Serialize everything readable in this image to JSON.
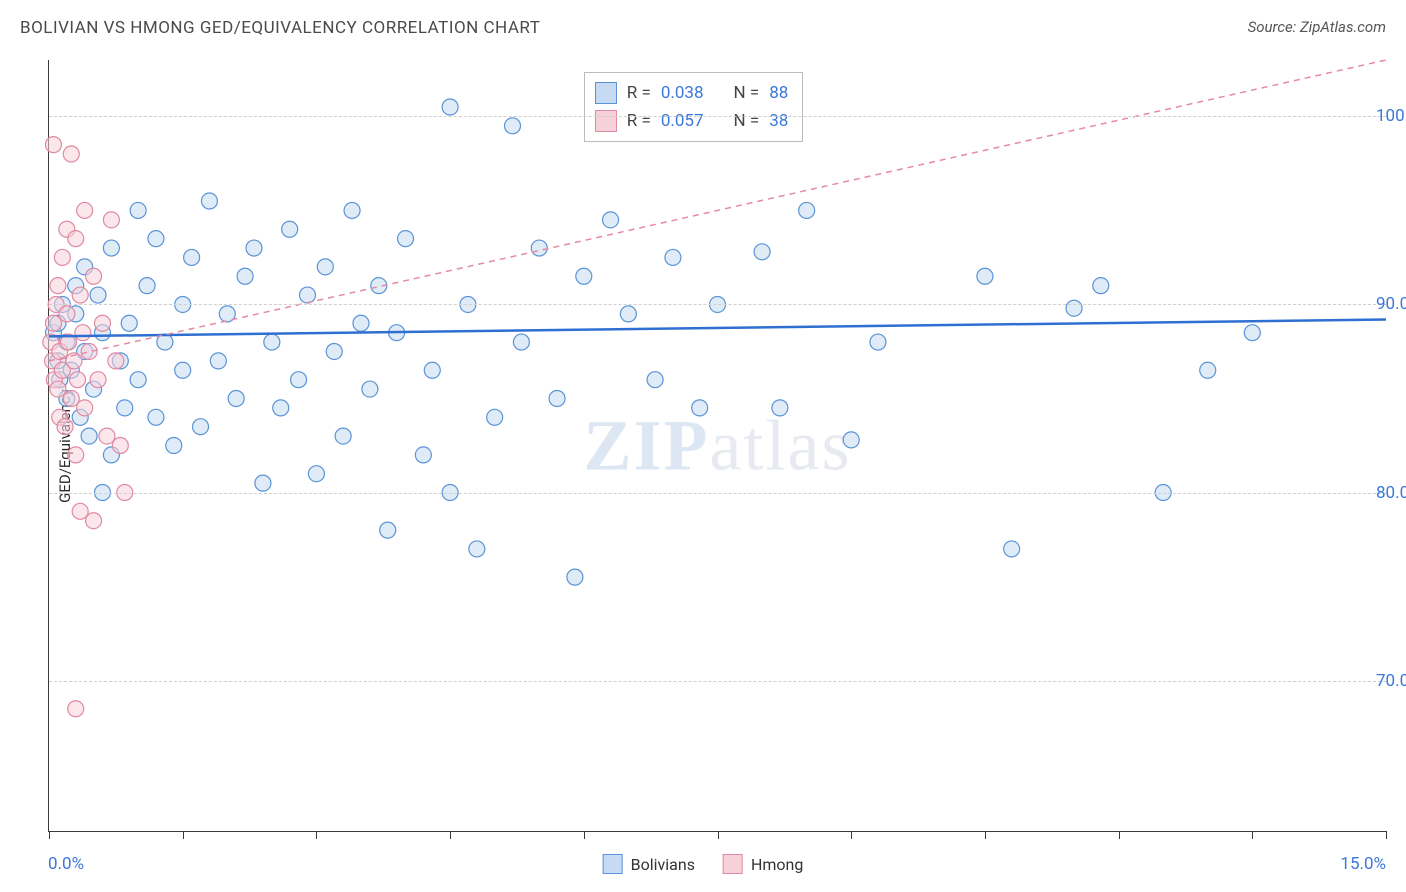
{
  "title": "BOLIVIAN VS HMONG GED/EQUIVALENCY CORRELATION CHART",
  "source_label": "Source: ZipAtlas.com",
  "watermark_main": "ZIP",
  "watermark_sub": "atlas",
  "chart": {
    "type": "scatter",
    "background_color": "#ffffff",
    "grid_color": "#cfcfcf",
    "border_color": "#3a3a3a",
    "xlim": [
      0,
      15
    ],
    "ylim": [
      62,
      103
    ],
    "x_ticks": [
      0,
      1.5,
      3.0,
      4.5,
      6.0,
      7.5,
      9.0,
      10.5,
      12.0,
      13.5,
      15.0
    ],
    "x_tick_labels": {
      "0": "0.0%",
      "15": "15.0%"
    },
    "y_ticks": [
      70,
      80,
      90,
      100
    ],
    "y_tick_labels": {
      "70": "70.0%",
      "80": "80.0%",
      "90": "90.0%",
      "100": "100.0%"
    },
    "ylabel": "GED/Equivalency",
    "axis_label_color": "#3b78d8",
    "marker_radius": 8,
    "marker_stroke_width": 1.2,
    "marker_opacity": 0.55,
    "series": [
      {
        "name": "Bolivians",
        "fill": "#c6dbf3",
        "stroke": "#5a94d6",
        "R": "0.038",
        "N": "88",
        "trend": {
          "x1": 0,
          "y1": 88.3,
          "x2": 15,
          "y2": 89.2,
          "color": "#2f6fd1",
          "width": 2.5,
          "dash": "none"
        },
        "points": [
          [
            0.05,
            88.5
          ],
          [
            0.1,
            87.0
          ],
          [
            0.1,
            89.0
          ],
          [
            0.12,
            86.0
          ],
          [
            0.15,
            90.0
          ],
          [
            0.2,
            85.0
          ],
          [
            0.2,
            88.0
          ],
          [
            0.25,
            86.5
          ],
          [
            0.3,
            89.5
          ],
          [
            0.3,
            91.0
          ],
          [
            0.35,
            84.0
          ],
          [
            0.4,
            92.0
          ],
          [
            0.4,
            87.5
          ],
          [
            0.45,
            83.0
          ],
          [
            0.5,
            85.5
          ],
          [
            0.55,
            90.5
          ],
          [
            0.6,
            80.0
          ],
          [
            0.6,
            88.5
          ],
          [
            0.7,
            82.0
          ],
          [
            0.7,
            93.0
          ],
          [
            0.8,
            87.0
          ],
          [
            0.85,
            84.5
          ],
          [
            0.9,
            89.0
          ],
          [
            1.0,
            95.0
          ],
          [
            1.0,
            86.0
          ],
          [
            1.1,
            91.0
          ],
          [
            1.2,
            93.5
          ],
          [
            1.2,
            84.0
          ],
          [
            1.3,
            88.0
          ],
          [
            1.4,
            82.5
          ],
          [
            1.5,
            90.0
          ],
          [
            1.5,
            86.5
          ],
          [
            1.6,
            92.5
          ],
          [
            1.7,
            83.5
          ],
          [
            1.8,
            95.5
          ],
          [
            1.9,
            87.0
          ],
          [
            2.0,
            89.5
          ],
          [
            2.1,
            85.0
          ],
          [
            2.2,
            91.5
          ],
          [
            2.3,
            93.0
          ],
          [
            2.4,
            80.5
          ],
          [
            2.5,
            88.0
          ],
          [
            2.6,
            84.5
          ],
          [
            2.7,
            94.0
          ],
          [
            2.8,
            86.0
          ],
          [
            2.9,
            90.5
          ],
          [
            3.0,
            81.0
          ],
          [
            3.1,
            92.0
          ],
          [
            3.2,
            87.5
          ],
          [
            3.3,
            83.0
          ],
          [
            3.4,
            95.0
          ],
          [
            3.5,
            89.0
          ],
          [
            3.6,
            85.5
          ],
          [
            3.7,
            91.0
          ],
          [
            3.8,
            78.0
          ],
          [
            3.9,
            88.5
          ],
          [
            4.0,
            93.5
          ],
          [
            4.2,
            82.0
          ],
          [
            4.3,
            86.5
          ],
          [
            4.5,
            100.5
          ],
          [
            4.5,
            80.0
          ],
          [
            4.7,
            90.0
          ],
          [
            4.8,
            77.0
          ],
          [
            5.0,
            84.0
          ],
          [
            5.2,
            99.5
          ],
          [
            5.3,
            88.0
          ],
          [
            5.5,
            93.0
          ],
          [
            5.7,
            85.0
          ],
          [
            5.9,
            75.5
          ],
          [
            6.0,
            91.5
          ],
          [
            6.3,
            94.5
          ],
          [
            6.5,
            89.5
          ],
          [
            6.8,
            86.0
          ],
          [
            7.0,
            92.5
          ],
          [
            7.3,
            84.5
          ],
          [
            7.5,
            90.0
          ],
          [
            8.0,
            92.8
          ],
          [
            8.2,
            84.5
          ],
          [
            8.5,
            95.0
          ],
          [
            9.0,
            82.8
          ],
          [
            9.3,
            88.0
          ],
          [
            10.5,
            91.5
          ],
          [
            10.8,
            77.0
          ],
          [
            11.5,
            89.8
          ],
          [
            11.8,
            91.0
          ],
          [
            12.5,
            80.0
          ],
          [
            13.0,
            86.5
          ],
          [
            13.5,
            88.5
          ]
        ]
      },
      {
        "name": "Hmong",
        "fill": "#f6d1da",
        "stroke": "#e08aa2",
        "R": "0.057",
        "N": "38",
        "trend": {
          "x1": 0,
          "y1": 87.0,
          "x2": 15,
          "y2": 103.0,
          "color": "#e58aa2",
          "width": 1.5,
          "dash": "6,5"
        },
        "points": [
          [
            0.02,
            88.0
          ],
          [
            0.04,
            87.0
          ],
          [
            0.05,
            89.0
          ],
          [
            0.06,
            86.0
          ],
          [
            0.08,
            90.0
          ],
          [
            0.1,
            85.5
          ],
          [
            0.1,
            91.0
          ],
          [
            0.12,
            87.5
          ],
          [
            0.12,
            84.0
          ],
          [
            0.15,
            92.5
          ],
          [
            0.15,
            86.5
          ],
          [
            0.18,
            83.5
          ],
          [
            0.2,
            89.5
          ],
          [
            0.2,
            94.0
          ],
          [
            0.22,
            88.0
          ],
          [
            0.25,
            85.0
          ],
          [
            0.25,
            98.0
          ],
          [
            0.28,
            87.0
          ],
          [
            0.3,
            82.0
          ],
          [
            0.3,
            93.5
          ],
          [
            0.32,
            86.0
          ],
          [
            0.35,
            79.0
          ],
          [
            0.35,
            90.5
          ],
          [
            0.38,
            88.5
          ],
          [
            0.4,
            84.5
          ],
          [
            0.4,
            95.0
          ],
          [
            0.45,
            87.5
          ],
          [
            0.5,
            78.5
          ],
          [
            0.5,
            91.5
          ],
          [
            0.55,
            86.0
          ],
          [
            0.6,
            89.0
          ],
          [
            0.65,
            83.0
          ],
          [
            0.7,
            94.5
          ],
          [
            0.75,
            87.0
          ],
          [
            0.8,
            82.5
          ],
          [
            0.85,
            80.0
          ],
          [
            0.3,
            68.5
          ],
          [
            0.05,
            98.5
          ]
        ]
      }
    ],
    "stats_legend": {
      "pos_top": 12,
      "pos_left_pct": 40,
      "rows": [
        {
          "swatch": 0,
          "R_label": "R =",
          "R": "0.038",
          "N_label": "N =",
          "N": "88"
        },
        {
          "swatch": 1,
          "R_label": "R =",
          "R": "0.057",
          "N_label": "N =",
          "N": "38"
        }
      ]
    },
    "bottom_legend": [
      {
        "swatch": 0,
        "label": "Bolivians"
      },
      {
        "swatch": 1,
        "label": "Hmong"
      }
    ]
  }
}
